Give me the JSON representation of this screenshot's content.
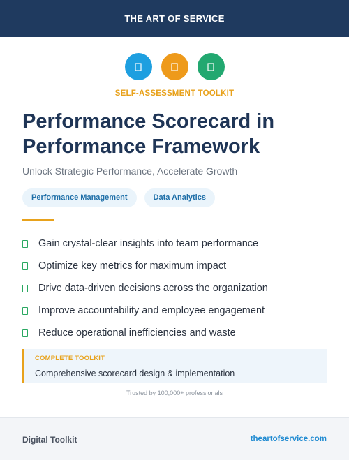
{
  "header": {
    "title": "THE ART OF SERVICE"
  },
  "icons": [
    {
      "name": "document-icon",
      "color": "#1e9fe0"
    },
    {
      "name": "document-icon",
      "color": "#ee9a1b"
    },
    {
      "name": "document-icon",
      "color": "#22a870"
    }
  ],
  "kicker": "SELF-ASSESSMENT TOOLKIT",
  "title": "Performance Scorecard in Performance Framework",
  "subtitle": "Unlock Strategic Performance, Accelerate Growth",
  "tags": [
    "Performance Management",
    "Data Analytics"
  ],
  "benefits": [
    "Gain crystal-clear insights into team performance",
    "Optimize key metrics for maximum impact",
    "Drive data-driven decisions across the organization",
    "Improve accountability and employee engagement",
    "Reduce operational inefficiencies and waste"
  ],
  "callout": {
    "label": "COMPLETE TOOLKIT",
    "text": "Comprehensive scorecard design & implementation"
  },
  "trusted": "Trusted by 100,000+ professionals",
  "footer": {
    "left": "Digital Toolkit",
    "right": "theartofservice.com"
  },
  "colors": {
    "header_bg": "#1f3a5f",
    "accent": "#e8a21c",
    "title": "#1f3556",
    "check": "#2aa861",
    "link": "#1f8ad1"
  }
}
